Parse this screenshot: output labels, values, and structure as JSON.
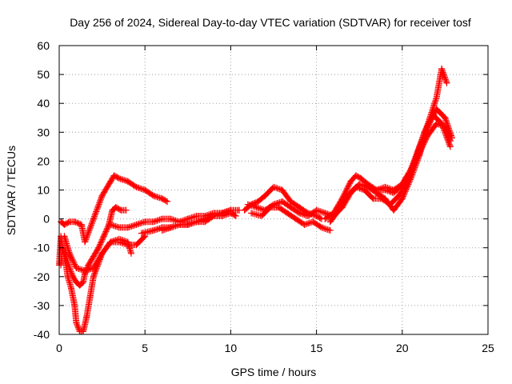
{
  "chart_data": {
    "type": "scatter",
    "title": "Day 256 of 2024, Sidereal Day-to-day VTEC variation (SDTVAR) for receiver tosf",
    "xlabel": "GPS time / hours",
    "ylabel": "SDTVAR / TECUs",
    "xlim": [
      0,
      25
    ],
    "ylim": [
      -40,
      60
    ],
    "xticks": [
      0,
      5,
      10,
      15,
      20,
      25
    ],
    "yticks": [
      -40,
      -30,
      -20,
      -10,
      0,
      10,
      20,
      30,
      40,
      50,
      60
    ],
    "grid": true,
    "marker": "+",
    "marker_color": "#ff0000",
    "series": [
      {
        "name": "arc-1",
        "x": [
          0.1,
          0.3,
          0.6,
          0.9,
          1.3,
          1.5,
          2.0,
          2.5,
          3.0,
          3.2,
          3.5,
          4.0,
          4.5,
          5.0,
          5.5,
          6.0,
          6.3
        ],
        "y": [
          -1,
          -2,
          -1,
          -1,
          -2,
          -8,
          0,
          8,
          13,
          15,
          14,
          13,
          11,
          10,
          8,
          7,
          6
        ]
      },
      {
        "name": "arc-2",
        "x": [
          0.1,
          0.2,
          0.4,
          0.6,
          0.8,
          1.0,
          1.2,
          1.4,
          1.5,
          1.7,
          2.0,
          2.3,
          2.6,
          2.9,
          3.1,
          3.3,
          3.6,
          3.9
        ],
        "y": [
          -16,
          -10,
          -13,
          -17,
          -20,
          -22,
          -23,
          -22,
          -19,
          -16,
          -13,
          -10,
          -6,
          -2,
          3,
          4,
          3,
          3
        ]
      },
      {
        "name": "arc-3",
        "x": [
          0.0,
          0.1,
          0.2,
          0.4,
          0.5,
          0.7,
          0.9,
          1.0,
          1.2,
          1.4,
          1.6,
          1.8,
          2.0,
          2.5,
          3.0,
          3.5,
          4.0,
          4.5,
          5.0
        ],
        "y": [
          -16,
          -6,
          -10,
          -16,
          -20,
          -24,
          -30,
          -36,
          -39,
          -39,
          -34,
          -27,
          -20,
          -12,
          -8,
          -8,
          -9,
          -9,
          -6
        ]
      },
      {
        "name": "arc-4",
        "x": [
          0.3,
          0.6,
          1.0,
          1.5,
          2.0,
          2.5,
          3.0,
          3.5,
          4.0,
          4.2
        ],
        "y": [
          -6,
          -12,
          -17,
          -18,
          -17,
          -12,
          -8,
          -7,
          -8,
          -12
        ]
      },
      {
        "name": "arc-5",
        "x": [
          3.0,
          3.5,
          4.0,
          4.5,
          5.0,
          5.5,
          6.0,
          6.5,
          7.0,
          7.5,
          8.0,
          8.5,
          9.0,
          9.5,
          10.0,
          10.5
        ],
        "y": [
          -2,
          -3,
          -3,
          -2,
          -1,
          -1,
          0,
          0,
          -1,
          0,
          1,
          1,
          2,
          2,
          3,
          3
        ]
      },
      {
        "name": "arc-6",
        "x": [
          4.8,
          5.5,
          6.0,
          6.5,
          7.0,
          7.5,
          8.0,
          8.5,
          9.0,
          9.5,
          10.0
        ],
        "y": [
          -5,
          -4,
          -3,
          -3,
          -2,
          -2,
          -1,
          0,
          1,
          2,
          3
        ]
      },
      {
        "name": "arc-7",
        "x": [
          6.0,
          6.5,
          7.0,
          7.5,
          8.0,
          8.5,
          9.0,
          9.5,
          10.0,
          10.3
        ],
        "y": [
          -4,
          -3,
          -2,
          -2,
          -1,
          -1,
          1,
          1,
          2,
          1
        ]
      },
      {
        "name": "arc-8",
        "x": [
          10.8,
          11.2,
          11.6,
          12.0,
          12.5,
          13.0,
          13.5,
          14.0,
          14.5,
          15.0,
          15.3
        ],
        "y": [
          3,
          5,
          6,
          8,
          11,
          10,
          6,
          4,
          2,
          1,
          0
        ]
      },
      {
        "name": "arc-9",
        "x": [
          11.0,
          11.5,
          12.0,
          12.5,
          13.0,
          13.5,
          14.0,
          14.5,
          15.0,
          15.5,
          16.0
        ],
        "y": [
          5,
          4,
          3,
          5,
          6,
          4,
          2,
          1,
          3,
          2,
          1
        ]
      },
      {
        "name": "arc-10",
        "x": [
          11.2,
          11.8,
          12.3,
          12.8,
          13.3,
          13.8,
          14.3,
          14.8,
          15.3,
          15.8
        ],
        "y": [
          2,
          1,
          4,
          4,
          2,
          0,
          -2,
          -1,
          -3,
          -4
        ]
      },
      {
        "name": "arc-11",
        "x": [
          15.5,
          16.0,
          16.5,
          17.0,
          17.3,
          17.6,
          18.0,
          18.5,
          19.0,
          19.5,
          20.0,
          20.5,
          21.0,
          21.5,
          22.0,
          22.3,
          22.6
        ],
        "y": [
          0,
          2,
          7,
          13,
          15,
          14,
          12,
          10,
          10,
          9,
          12,
          17,
          25,
          33,
          42,
          52,
          47
        ]
      },
      {
        "name": "arc-12",
        "x": [
          15.8,
          16.3,
          16.8,
          17.3,
          17.8,
          18.3,
          18.8,
          19.3,
          19.8,
          20.3,
          20.8,
          21.3,
          21.8,
          22.3,
          22.8
        ],
        "y": [
          -1,
          3,
          8,
          11,
          10,
          7,
          7,
          5,
          8,
          13,
          21,
          30,
          36,
          33,
          25
        ]
      },
      {
        "name": "arc-13",
        "x": [
          16.0,
          16.5,
          17.0,
          17.5,
          18.0,
          18.5,
          19.0,
          19.5,
          20.0,
          20.5,
          21.0,
          21.5,
          22.0,
          22.5,
          22.9
        ],
        "y": [
          1,
          4,
          9,
          12,
          11,
          9,
          7,
          3,
          7,
          14,
          22,
          32,
          38,
          35,
          28
        ]
      },
      {
        "name": "arc-14",
        "x": [
          18.5,
          19.0,
          19.5,
          20.0,
          20.5,
          21.0,
          21.5,
          22.0,
          22.5,
          22.8
        ],
        "y": [
          10,
          11,
          10,
          12,
          17,
          23,
          29,
          33,
          32,
          27
        ]
      }
    ]
  }
}
